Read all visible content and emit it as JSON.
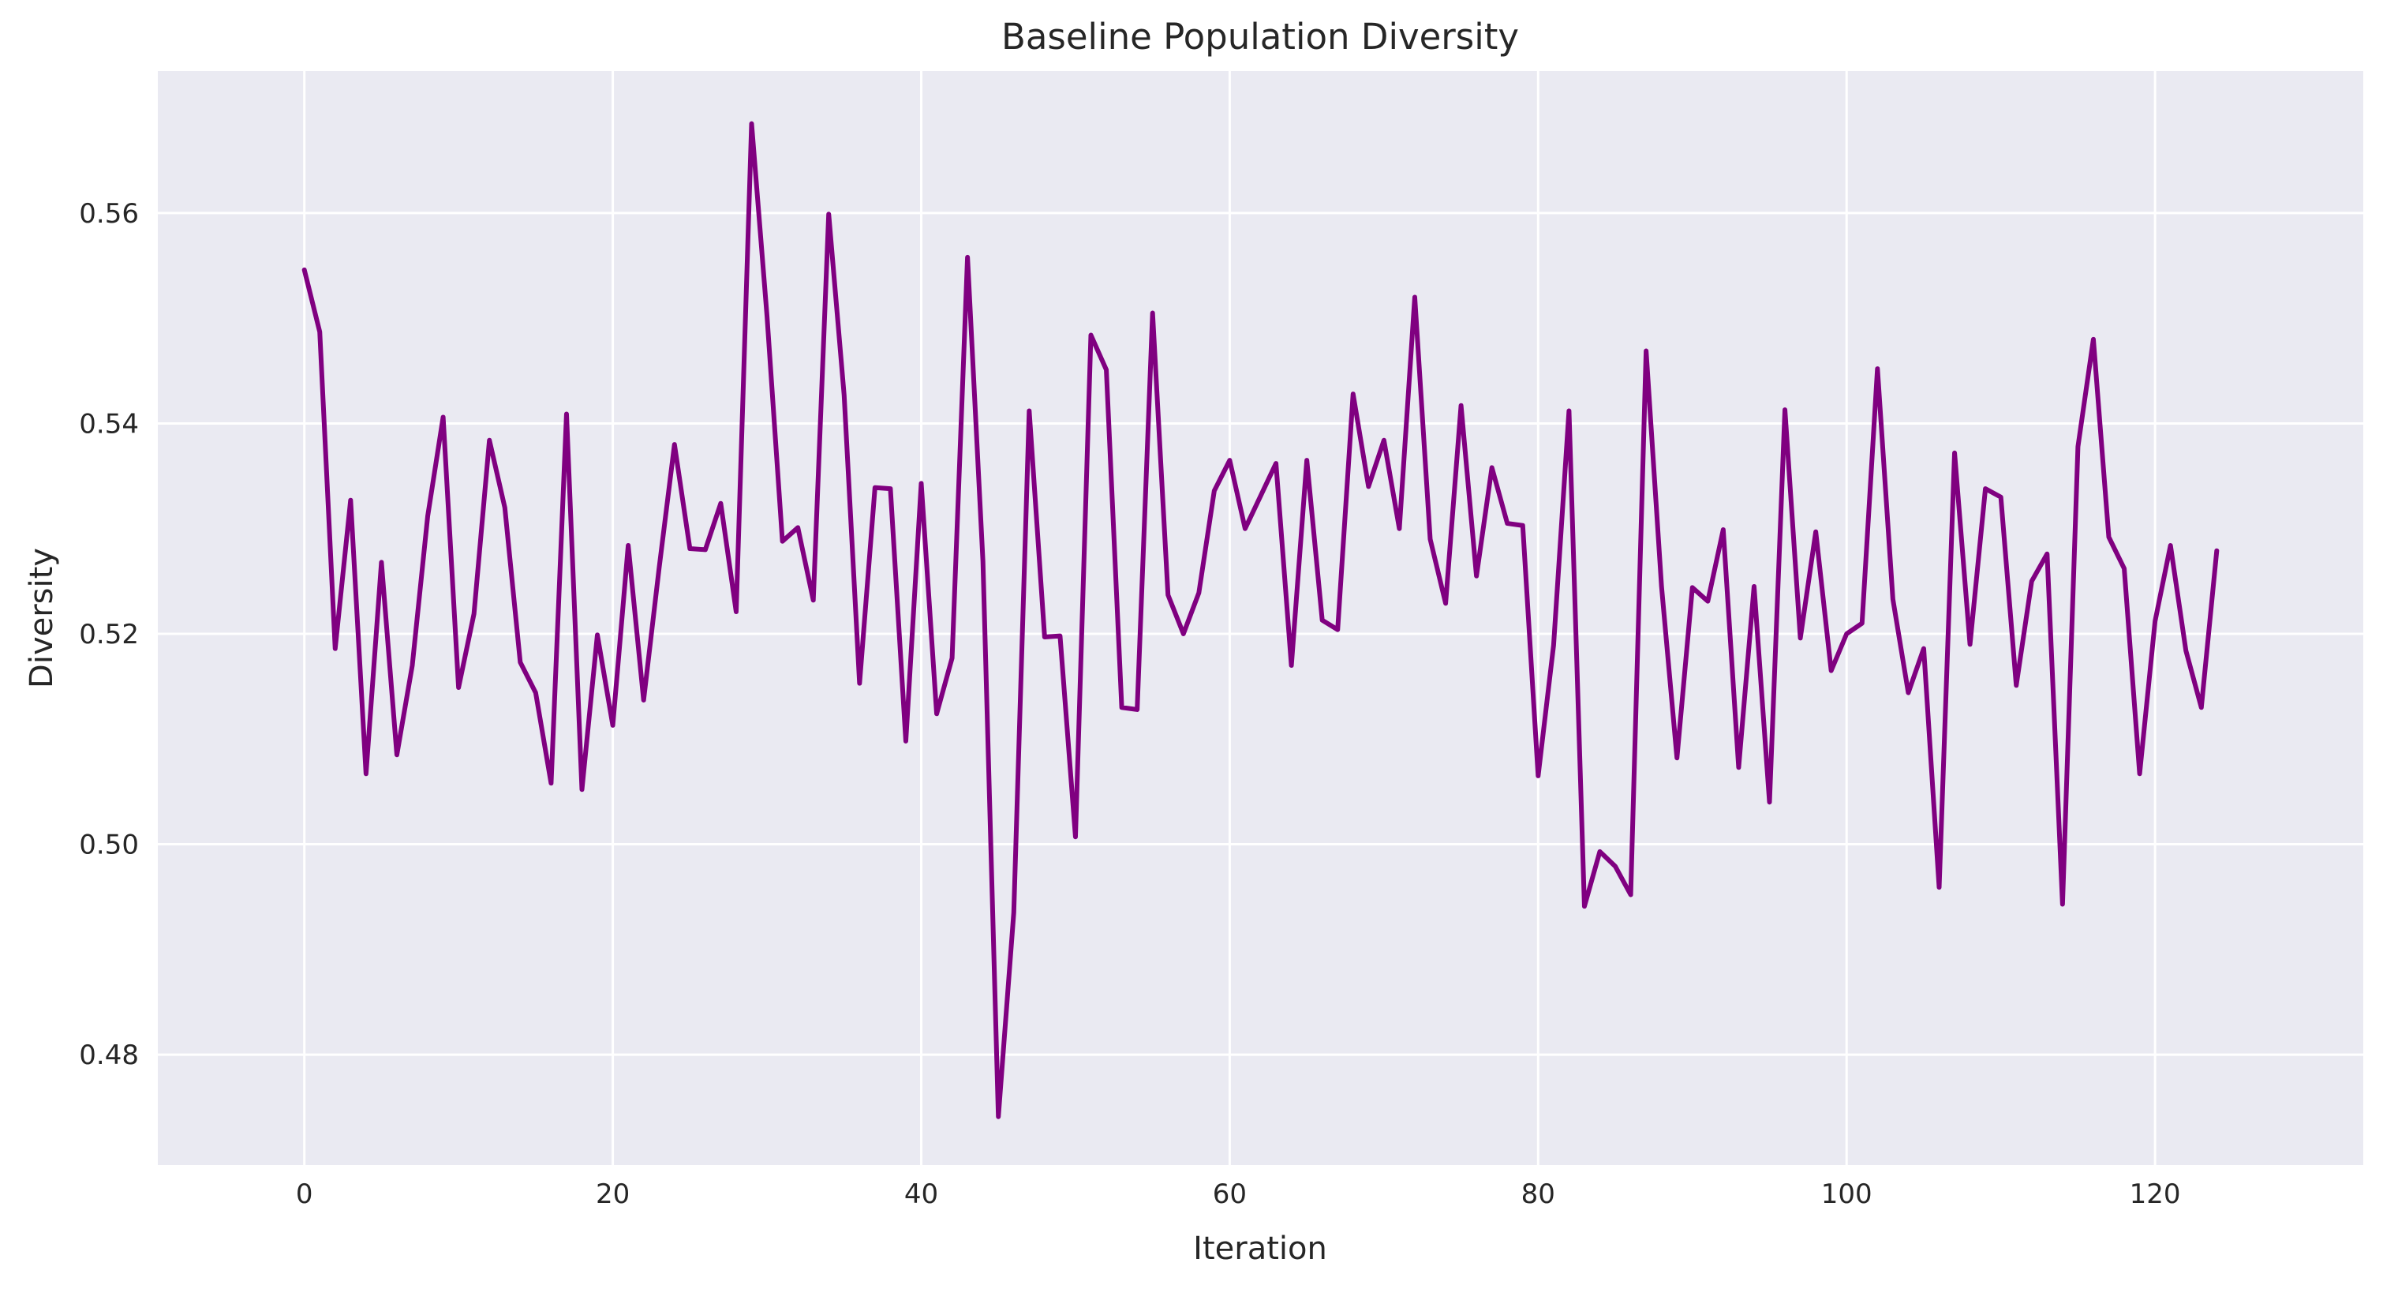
{
  "chart_data": {
    "type": "line",
    "title": "Baseline Population Diversity",
    "xlabel": "Iteration",
    "ylabel": "Diversity",
    "xlim": [
      -9.5,
      133.5
    ],
    "ylim": [
      0.4695,
      0.5735
    ],
    "xticks": [
      0,
      20,
      40,
      60,
      80,
      100,
      120
    ],
    "yticks": [
      0.48,
      0.5,
      0.52,
      0.54,
      0.56
    ],
    "xtick_labels": [
      "0",
      "20",
      "40",
      "60",
      "80",
      "100",
      "120"
    ],
    "ytick_labels": [
      "0.48",
      "0.50",
      "0.52",
      "0.54",
      "0.56"
    ],
    "grid": true,
    "background": "#eaeaf2",
    "series": [
      {
        "color": "#800080",
        "x": [
          0,
          1,
          2,
          3,
          4,
          5,
          6,
          7,
          8,
          9,
          10,
          11,
          12,
          13,
          14,
          15,
          16,
          17,
          18,
          19,
          20,
          21,
          22,
          23,
          24,
          25,
          26,
          27,
          28,
          29,
          30,
          31,
          32,
          33,
          34,
          35,
          36,
          37,
          38,
          39,
          40,
          41,
          42,
          43,
          44,
          45,
          46,
          47,
          48,
          49,
          50,
          51,
          52,
          53,
          54,
          55,
          56,
          57,
          58,
          59,
          60,
          61,
          62,
          63,
          64,
          65,
          66,
          67,
          68,
          69,
          70,
          71,
          72,
          73,
          74,
          75,
          76,
          77,
          78,
          79,
          80,
          81,
          82,
          83,
          84,
          85,
          86,
          87,
          88,
          89,
          90,
          91,
          92,
          93,
          94,
          95,
          96,
          97,
          98,
          99,
          100,
          101,
          102,
          103,
          104,
          105,
          106,
          107,
          108,
          109,
          110,
          111,
          112,
          113,
          114,
          115,
          116,
          117,
          118,
          119,
          120,
          121,
          122,
          123,
          124
        ],
        "y": [
          0.5546,
          0.5487,
          0.5186,
          0.5327,
          0.5067,
          0.5268,
          0.5085,
          0.517,
          0.5312,
          0.5406,
          0.5149,
          0.5219,
          0.5384,
          0.532,
          0.5173,
          0.5144,
          0.5058,
          0.5409,
          0.5052,
          0.5199,
          0.5113,
          0.5284,
          0.5137,
          0.5262,
          0.538,
          0.5281,
          0.528,
          0.5324,
          0.5221,
          0.5685,
          0.5502,
          0.5288,
          0.5301,
          0.5232,
          0.5599,
          0.5427,
          0.5153,
          0.5339,
          0.5338,
          0.5098,
          0.5343,
          0.5124,
          0.5177,
          0.5558,
          0.5269,
          0.4741,
          0.4935,
          0.5412,
          0.5197,
          0.5198,
          0.5007,
          0.5484,
          0.5451,
          0.513,
          0.5128,
          0.5505,
          0.5237,
          0.52,
          0.5239,
          0.5336,
          0.5365,
          0.53,
          0.5331,
          0.5362,
          0.517,
          0.5365,
          0.5213,
          0.5204,
          0.5428,
          0.534,
          0.5384,
          0.53,
          0.552,
          0.529,
          0.5229,
          0.5417,
          0.5255,
          0.5358,
          0.5305,
          0.5303,
          0.5065,
          0.5189,
          0.5412,
          0.4941,
          0.4993,
          0.4979,
          0.4952,
          0.5469,
          0.5245,
          0.5082,
          0.5244,
          0.5231,
          0.5299,
          0.5073,
          0.5245,
          0.504,
          0.5413,
          0.5196,
          0.5297,
          0.5165,
          0.52,
          0.521,
          0.5452,
          0.5233,
          0.5144,
          0.5186,
          0.4959,
          0.5372,
          0.519,
          0.5338,
          0.533,
          0.5151,
          0.525,
          0.5276,
          0.4943,
          0.5378,
          0.548,
          0.5292,
          0.5262,
          0.5067,
          0.5212,
          0.5284,
          0.5184,
          0.513,
          0.5279
        ]
      }
    ]
  }
}
